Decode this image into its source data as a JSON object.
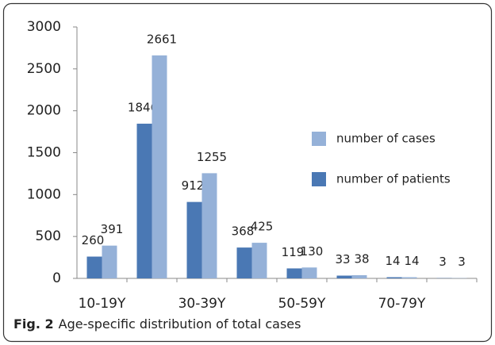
{
  "chart_data": {
    "type": "bar",
    "categories": [
      "10-19Y",
      null,
      "30-39Y",
      null,
      "50-59Y",
      null,
      "70-79Y",
      null
    ],
    "series": [
      {
        "name": "number of patients",
        "color": "#4a78b4",
        "values": [
          260,
          1846,
          912,
          368,
          119,
          33,
          14,
          3
        ]
      },
      {
        "name": "number of cases",
        "color": "#95b1d8",
        "values": [
          391,
          2661,
          1255,
          425,
          130,
          38,
          14,
          3
        ]
      }
    ],
    "ylim": [
      0,
      3000
    ],
    "yticks": [
      0,
      500,
      1000,
      1500,
      2000,
      2500,
      3000
    ],
    "grid": false,
    "legend": "right",
    "caption": {
      "label": "Fig. 2",
      "text": "Age-specific distribution of total cases"
    }
  }
}
